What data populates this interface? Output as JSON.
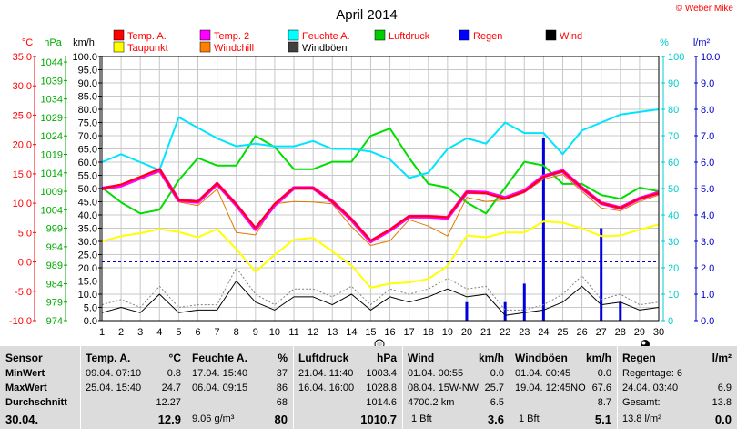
{
  "title": "April 2014",
  "copyright": "© Weber Mike",
  "legend": [
    {
      "label": "Temp. A.",
      "color": "#ff0000",
      "text_color": "#ff0000"
    },
    {
      "label": "Temp. 2",
      "color": "#ff00ff",
      "text_color": "#ff0000"
    },
    {
      "label": "Feuchte A.",
      "color": "#00ffff",
      "text_color": "#ff0000"
    },
    {
      "label": "Luftdruck",
      "color": "#00cc00",
      "text_color": "#ff0000"
    },
    {
      "label": "Regen",
      "color": "#0000ff",
      "text_color": "#ff0000"
    },
    {
      "label": "Wind",
      "color": "#000000",
      "text_color": "#ff0000"
    },
    {
      "label": "Taupunkt",
      "color": "#ffff00",
      "text_color": "#ff0000"
    },
    {
      "label": "Windchill",
      "color": "#ff8000",
      "text_color": "#ff0000"
    },
    {
      "label": "Windböen",
      "color": "#404040",
      "text_color": "#000000"
    }
  ],
  "axes": {
    "temp": {
      "unit": "°C",
      "ticks": [
        "35.0",
        "30.0",
        "25.0",
        "20.0",
        "15.0",
        "10.0",
        "5.0",
        "0.0",
        "-5.0",
        "-10.0"
      ],
      "color": "#ff0000"
    },
    "press": {
      "unit": "hPa",
      "ticks": [
        "1044",
        "1039",
        "1034",
        "1029",
        "1024",
        "1019",
        "1014",
        "1009",
        "1004",
        "999",
        "994",
        "989",
        "984",
        "979",
        "974"
      ],
      "color": "#00aa00"
    },
    "wind": {
      "unit": "km/h",
      "ticks": [
        "100.0",
        "95.0",
        "90.0",
        "85.0",
        "80.0",
        "75.0",
        "70.0",
        "65.0",
        "60.0",
        "55.0",
        "50.0",
        "45.0",
        "40.0",
        "35.0",
        "30.0",
        "25.0",
        "20.0",
        "15.0",
        "10.0",
        "5.0",
        "0.0"
      ],
      "color": "#000000"
    },
    "hum": {
      "unit": "%",
      "ticks": [
        "100",
        "90",
        "80",
        "70",
        "60",
        "50",
        "40",
        "30",
        "20",
        "10",
        "0"
      ],
      "color": "#00cccc"
    },
    "rain": {
      "unit": "l/m²",
      "ticks": [
        "10.0",
        "9.0",
        "8.0",
        "7.0",
        "6.0",
        "5.0",
        "4.0",
        "3.0",
        "2.0",
        "1.0",
        "0.0"
      ],
      "color": "#0000cc"
    },
    "x_ticks": [
      "1",
      "2",
      "3",
      "4",
      "5",
      "6",
      "7",
      "8",
      "9",
      "10",
      "11",
      "12",
      "13",
      "14",
      "15",
      "16",
      "17",
      "18",
      "19",
      "20",
      "21",
      "22",
      "23",
      "24",
      "25",
      "26",
      "27",
      "28",
      "29",
      "30"
    ]
  },
  "chart_data": {
    "type": "line",
    "title": "April 2014",
    "x": [
      1,
      2,
      3,
      4,
      5,
      6,
      7,
      8,
      9,
      10,
      11,
      12,
      13,
      14,
      15,
      16,
      17,
      18,
      19,
      20,
      21,
      22,
      23,
      24,
      25,
      26,
      27,
      28,
      29,
      30
    ],
    "xlim": [
      1,
      30
    ],
    "grid": true,
    "axis_ranges": {
      "temp": [
        -10,
        35
      ],
      "press": [
        974,
        1045.5
      ],
      "wind": [
        0,
        100
      ],
      "hum": [
        0,
        100
      ],
      "rain": [
        0,
        10
      ]
    },
    "series": [
      {
        "name": "Temp. A.",
        "axis": "temp",
        "values": [
          12.5,
          13.2,
          14.5,
          15.8,
          10.5,
          10.3,
          13.4,
          9.8,
          5.8,
          9.9,
          12.6,
          12.6,
          10.3,
          7.3,
          3.6,
          5.5,
          7.8,
          7.8,
          7.6,
          11.9,
          11.7,
          10.8,
          12.0,
          14.5,
          15.5,
          12.6,
          10.0,
          9.2,
          10.8,
          11.7
        ]
      },
      {
        "name": "Temp. 2",
        "axis": "temp",
        "values": [
          12.5,
          13.0,
          14.3,
          15.7,
          10.5,
          10.2,
          13.3,
          9.7,
          5.6,
          9.7,
          12.6,
          12.6,
          10.3,
          7.2,
          3.5,
          5.4,
          7.7,
          7.7,
          7.5,
          11.9,
          11.8,
          10.9,
          12.1,
          14.6,
          15.5,
          12.6,
          10.0,
          9.2,
          10.8,
          11.8
        ]
      },
      {
        "name": "Feuchte A.",
        "axis": "hum",
        "values": [
          60,
          63,
          60,
          57,
          77,
          73,
          69,
          66,
          67,
          66,
          66,
          68,
          65,
          65,
          64,
          61,
          54,
          56,
          65,
          69,
          67,
          75,
          71,
          71,
          63,
          72,
          75,
          78,
          79,
          80
        ]
      },
      {
        "name": "Luftdruck",
        "axis": "press",
        "values": [
          1010,
          1006,
          1003,
          1004,
          1012,
          1018,
          1016,
          1016,
          1024,
          1021,
          1015,
          1015,
          1017,
          1017,
          1024,
          1026,
          1018,
          1011,
          1010,
          1006,
          1003,
          1010,
          1017,
          1016,
          1011,
          1011,
          1008,
          1007,
          1010,
          1009
        ]
      },
      {
        "name": "Taupunkt",
        "axis": "temp",
        "values": [
          3.5,
          4.4,
          4.9,
          5.6,
          5.1,
          4.2,
          5.6,
          2.2,
          -1.7,
          1.2,
          3.8,
          4.1,
          1.8,
          -0.6,
          -4.4,
          -3.7,
          -3.5,
          -2.9,
          -0.7,
          4.5,
          4.2,
          5.0,
          5.0,
          6.9,
          6.7,
          5.7,
          4.4,
          4.5,
          5.5,
          6.4
        ]
      },
      {
        "name": "Windchill",
        "axis": "temp",
        "values": [
          12.5,
          13.2,
          14.2,
          15.3,
          10.2,
          9.6,
          12.4,
          5.0,
          4.6,
          9.9,
          10.3,
          10.2,
          9.9,
          6.0,
          2.8,
          3.6,
          7.2,
          6.1,
          4.4,
          11.0,
          10.3,
          10.6,
          11.8,
          14.1,
          14.9,
          12.0,
          9.2,
          8.7,
          10.3,
          11.4
        ]
      },
      {
        "name": "Wind",
        "axis": "wind",
        "values": [
          3,
          5,
          3,
          10,
          3,
          4,
          4,
          15,
          7,
          4,
          9,
          9,
          6,
          10,
          4,
          9,
          7,
          9,
          12,
          9,
          10,
          2,
          3,
          4,
          7,
          13,
          6,
          7,
          4,
          5
        ]
      },
      {
        "name": "Windböen",
        "axis": "wind",
        "values": [
          6,
          8,
          5,
          13,
          5,
          6,
          6,
          20,
          10,
          6,
          12,
          12,
          9,
          13,
          6,
          12,
          10,
          12,
          16,
          12,
          13,
          4,
          4,
          6,
          10,
          17,
          8,
          10,
          6,
          7
        ]
      },
      {
        "name": "Regen",
        "axis": "rain",
        "type": "bar",
        "x": [
          20,
          22,
          23,
          24,
          27,
          28
        ],
        "values": [
          0.7,
          0.7,
          1.4,
          6.9,
          3.5,
          0.7
        ]
      }
    ]
  },
  "table": {
    "sensor": {
      "header": "Sensor",
      "rows": [
        "MinWert",
        "MaxWert",
        "Durchschnitt",
        "30.04."
      ]
    },
    "temp": {
      "header": "Temp. A.",
      "unit": "°C",
      "min_time": "09.04.  07:10",
      "min_val": "0.8",
      "max_time": "25.04.  15:40",
      "max_val": "24.7",
      "avg": "12.27",
      "cur": "12.9"
    },
    "hum": {
      "header": "Feuchte A.",
      "unit": "%",
      "min_time": "17.04.  15:40",
      "min_val": "37",
      "max_time": "06.04.  09:15",
      "max_val": "86",
      "avg": "68",
      "cur_note": "9.06 g/m³",
      "cur": "80"
    },
    "press": {
      "header": "Luftdruck",
      "unit": "hPa",
      "min_time": "21.04.  11:40",
      "min_val": "1003.4",
      "max_time": "16.04.  16:00",
      "max_val": "1028.8",
      "avg": "1014.6",
      "cur": "1010.7"
    },
    "wind": {
      "header": "Wind",
      "unit": "km/h",
      "min_time": "01.04.  00:55",
      "min_val": "0.0",
      "max_time": "08.04.  15W-NW",
      "max_val": "25.7",
      "avg_note": "4700.2 km",
      "avg": "6.5",
      "cur_note": "1 Bft",
      "cur": "3.6"
    },
    "gust": {
      "header": "Windböen",
      "unit": "km/h",
      "min_time": "01.04.  00:45",
      "min_val": "0.0",
      "max_time": "19.04.  12:45NO",
      "max_val": "67.6",
      "avg": "8.7",
      "cur_note": "1 Bft",
      "cur": "5.1"
    },
    "rain": {
      "header": "Regen",
      "unit": "l/m²",
      "row1": "Regentage: 6",
      "max_time": "24.04.  03:40",
      "max_val": "6.9",
      "total_label": "Gesamt:",
      "total": "13.8",
      "cur": "13.8 l/m²",
      "cur_val": "0.0"
    }
  }
}
